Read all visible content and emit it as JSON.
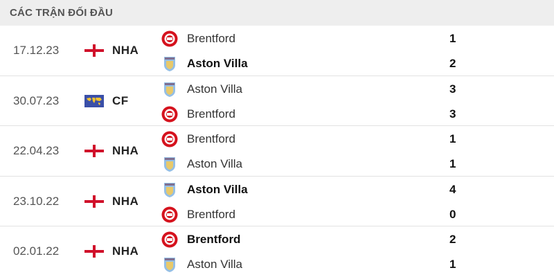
{
  "header": {
    "title": "CÁC TRẬN ĐỐI ĐẦU"
  },
  "colors": {
    "brentford": "#d5121d",
    "aston_villa": "#95bfe5",
    "header_bg": "#eeeeee"
  },
  "matches": [
    {
      "date": "17.12.23",
      "competition": "NHA",
      "flag_icon": "england-flag-icon",
      "teams": [
        {
          "name": "Brentford",
          "score": "1",
          "winner": false,
          "crest": "brentford-crest-icon"
        },
        {
          "name": "Aston Villa",
          "score": "2",
          "winner": true,
          "crest": "aston-villa-crest-icon"
        }
      ]
    },
    {
      "date": "30.07.23",
      "competition": "CF",
      "flag_icon": "world-flag-icon",
      "teams": [
        {
          "name": "Aston Villa",
          "score": "3",
          "winner": false,
          "crest": "aston-villa-crest-icon"
        },
        {
          "name": "Brentford",
          "score": "3",
          "winner": false,
          "crest": "brentford-crest-icon"
        }
      ]
    },
    {
      "date": "22.04.23",
      "competition": "NHA",
      "flag_icon": "england-flag-icon",
      "teams": [
        {
          "name": "Brentford",
          "score": "1",
          "winner": false,
          "crest": "brentford-crest-icon"
        },
        {
          "name": "Aston Villa",
          "score": "1",
          "winner": false,
          "crest": "aston-villa-crest-icon"
        }
      ]
    },
    {
      "date": "23.10.22",
      "competition": "NHA",
      "flag_icon": "england-flag-icon",
      "teams": [
        {
          "name": "Aston Villa",
          "score": "4",
          "winner": true,
          "crest": "aston-villa-crest-icon"
        },
        {
          "name": "Brentford",
          "score": "0",
          "winner": false,
          "crest": "brentford-crest-icon"
        }
      ]
    },
    {
      "date": "02.01.22",
      "competition": "NHA",
      "flag_icon": "england-flag-icon",
      "teams": [
        {
          "name": "Brentford",
          "score": "2",
          "winner": true,
          "crest": "brentford-crest-icon"
        },
        {
          "name": "Aston Villa",
          "score": "1",
          "winner": false,
          "crest": "aston-villa-crest-icon"
        }
      ]
    }
  ]
}
